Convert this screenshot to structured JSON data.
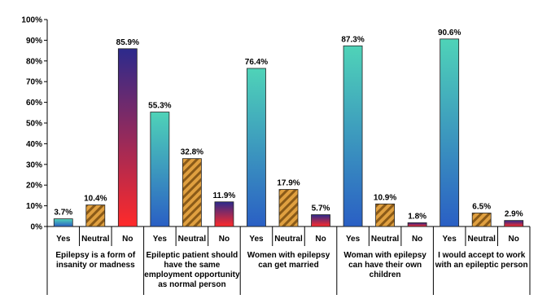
{
  "chart_data": {
    "type": "bar",
    "ylim": [
      0,
      100
    ],
    "y_ticks": [
      "0%",
      "10%",
      "20%",
      "30%",
      "40%",
      "50%",
      "60%",
      "70%",
      "80%",
      "90%",
      "100%"
    ],
    "categories": [
      "Yes",
      "Neutral",
      "No"
    ],
    "groups": [
      {
        "label": [
          "Epilepsy is a form of",
          "insanity or madness"
        ],
        "values": [
          3.7,
          10.4,
          85.9
        ],
        "value_labels": [
          "3.7%",
          "10.4%",
          "85.9%"
        ]
      },
      {
        "label": [
          "Epileptic patient should",
          "have the same",
          "employment opportunity",
          "as normal person"
        ],
        "values": [
          55.3,
          32.8,
          11.9
        ],
        "value_labels": [
          "55.3%",
          "32.8%",
          "11.9%"
        ]
      },
      {
        "label": [
          "Women with epilepsy",
          "can get married"
        ],
        "values": [
          76.4,
          17.9,
          5.7
        ],
        "value_labels": [
          "76.4%",
          "17.9%",
          "5.7%"
        ]
      },
      {
        "label": [
          "Woman with epilepsy",
          "can have their own",
          "children"
        ],
        "values": [
          87.3,
          10.9,
          1.8
        ],
        "value_labels": [
          "87.3%",
          "10.9%",
          "1.8%"
        ]
      },
      {
        "label": [
          "I would accept to work",
          "with an epileptic person"
        ],
        "values": [
          90.6,
          6.5,
          2.9
        ],
        "value_labels": [
          "90.6%",
          "6.5%",
          "2.9%"
        ]
      }
    ],
    "colors": {
      "yes_top": "#4fd3b8",
      "yes_bottom": "#2a5fc4",
      "neutral_a": "#e0a040",
      "neutral_b": "#8a5a18",
      "no_top": "#2c2a8c",
      "no_bottom": "#ff2a2a"
    },
    "grid": false,
    "legend": "none"
  }
}
